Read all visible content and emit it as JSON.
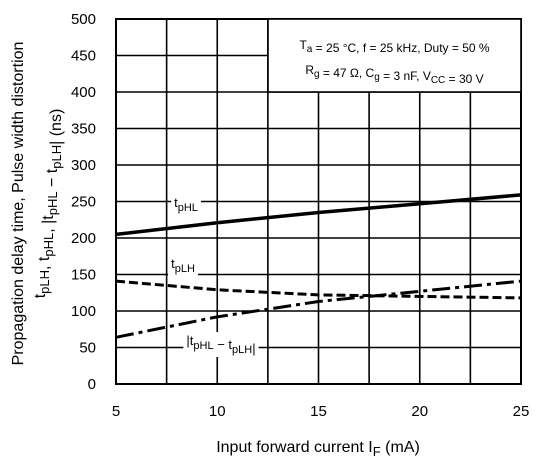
{
  "chart_data": {
    "type": "line",
    "xlabel": "Input forward current",
    "xlabel_symbol": "I",
    "xlabel_sub": "F",
    "xlabel_unit": "(mA)",
    "ylabel_line1": "Propagation delay time, Pulse width distortion",
    "ylabel_line2": {
      "parts": [
        {
          "t": "t",
          "s": "pLH"
        },
        {
          "t": ", t",
          "s": "pHL"
        },
        {
          "t": ", |t",
          "s": "pHL"
        },
        {
          "t": " − t",
          "s": "pLH"
        },
        {
          "t": "|",
          "s": ""
        }
      ],
      "unit": "(ns)"
    },
    "xlim": [
      5,
      25
    ],
    "ylim": [
      0,
      500
    ],
    "xticks": [
      "5",
      "10",
      "15",
      "20",
      "25"
    ],
    "yticks": [
      "0",
      "50",
      "100",
      "150",
      "200",
      "250",
      "300",
      "350",
      "400",
      "450",
      "500"
    ],
    "grid": true,
    "series": [
      {
        "name": {
          "t": "t",
          "s": "pHL",
          "after": ""
        },
        "style": "solid",
        "x": [
          5,
          10,
          15,
          20,
          25
        ],
        "y": [
          205,
          221,
          235,
          247,
          259
        ]
      },
      {
        "name": {
          "t": "t",
          "s": "pLH",
          "after": ""
        },
        "style": "dashed",
        "x": [
          5,
          10,
          15,
          20,
          25
        ],
        "y": [
          141,
          129,
          122,
          120,
          118
        ]
      },
      {
        "name": {
          "t": "|t",
          "s": "pHL",
          "after": " − t",
          "s2": "pLH",
          "end": "|"
        },
        "style": "dashdot",
        "x": [
          5,
          10,
          15,
          20,
          25
        ],
        "y": [
          64,
          92,
          113,
          127,
          141
        ]
      }
    ],
    "annotation": {
      "line1": [
        {
          "t": "T",
          "s": "a"
        },
        {
          "t": " = 25 °C, f = 25 kHz, Duty = 50 %",
          "s": ""
        }
      ],
      "line2": [
        {
          "t": "R",
          "s": "g"
        },
        {
          "t": " = 47 Ω, C",
          "s": "g"
        },
        {
          "t": " = 3 nF, V",
          "s": "CC"
        },
        {
          "t": " = 30 V",
          "s": ""
        }
      ]
    },
    "color": "#000000"
  }
}
